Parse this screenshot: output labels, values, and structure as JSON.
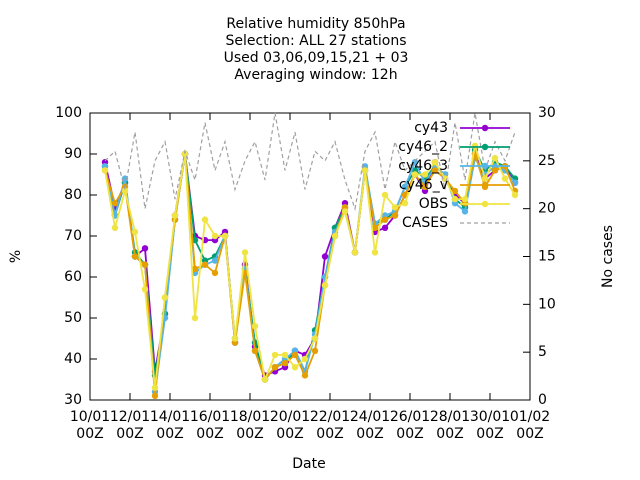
{
  "chart_data": {
    "type": "line",
    "title": "Relative humidity 850hPa\nSelection: ALL      27 stations\nUsed  03,06,09,15,21  + 03\nAveraging window: 12h",
    "xlabel": "Date",
    "ylabel": "%",
    "y2label": "No cases",
    "x": [
      0.75,
      1.25,
      1.75,
      2.25,
      2.75,
      3.25,
      3.75,
      4.25,
      4.75,
      5.25,
      5.75,
      6.25,
      6.75,
      7.25,
      7.75,
      8.25,
      8.75,
      9.25,
      9.75,
      10.25,
      10.75,
      11.25,
      11.75,
      12.25,
      12.75,
      13.25,
      13.75,
      14.25,
      14.75,
      15.25,
      15.75,
      16.25,
      16.75,
      17.25,
      17.75,
      18.25,
      18.75,
      19.25,
      19.75,
      20.25,
      20.75,
      21.25
    ],
    "xlim": [
      0,
      22
    ],
    "xticks": [
      {
        "value": 0,
        "label": "10/01\n00Z"
      },
      {
        "value": 2,
        "label": "12/01\n00Z"
      },
      {
        "value": 4,
        "label": "14/01\n00Z"
      },
      {
        "value": 6,
        "label": "16/01\n00Z"
      },
      {
        "value": 8,
        "label": "18/01\n00Z"
      },
      {
        "value": 10,
        "label": "20/01\n00Z"
      },
      {
        "value": 12,
        "label": "22/01\n00Z"
      },
      {
        "value": 14,
        "label": "24/01\n00Z"
      },
      {
        "value": 16,
        "label": "26/01\n00Z"
      },
      {
        "value": 18,
        "label": "28/01\n00Z"
      },
      {
        "value": 20,
        "label": "30/01\n00Z"
      },
      {
        "value": 22,
        "label": "01/02\n00Z"
      }
    ],
    "ylim": [
      30,
      100
    ],
    "yticks": [
      30,
      40,
      50,
      60,
      70,
      80,
      90,
      100
    ],
    "y2lim": [
      0,
      30
    ],
    "y2ticks": [
      0,
      5,
      10,
      15,
      20,
      25,
      30
    ],
    "legend": "top-right",
    "series": [
      {
        "name": "cy43",
        "color": "#9400d3",
        "values": [
          88,
          77,
          83,
          65,
          67,
          37,
          51,
          75,
          90,
          70,
          69,
          69,
          71,
          44,
          63,
          43,
          36,
          37,
          38,
          42,
          41,
          45,
          65,
          72,
          78,
          66,
          86,
          71,
          72,
          75,
          80,
          85,
          81,
          88,
          84,
          80,
          78,
          90,
          84,
          86,
          87,
          83
        ]
      },
      {
        "name": "cy46_2",
        "color": "#009e73",
        "values": [
          87,
          75,
          83,
          66,
          63,
          36,
          51,
          74,
          90,
          69,
          64,
          65,
          70,
          45,
          62,
          44,
          35,
          38,
          39,
          42,
          37,
          47,
          60,
          72,
          77,
          66,
          86,
          73,
          74,
          76,
          82,
          86,
          84,
          87,
          85,
          79,
          77,
          91,
          86,
          88,
          87,
          84
        ]
      },
      {
        "name": "cy46_3",
        "color": "#56b4e9",
        "values": [
          87,
          75,
          84,
          65,
          63,
          32,
          50,
          74,
          90,
          61,
          63,
          64,
          70,
          44,
          62,
          42,
          35,
          38,
          40,
          42,
          37,
          46,
          60,
          71,
          76,
          66,
          87,
          73,
          75,
          76,
          82,
          88,
          83,
          87,
          85,
          78,
          76,
          89,
          85,
          87,
          86,
          83
        ]
      },
      {
        "name": "cy46_v",
        "color": "#e69f00",
        "values": [
          86,
          78,
          82,
          65,
          63,
          31,
          55,
          74,
          90,
          62,
          63,
          61,
          70,
          44,
          61,
          42,
          35,
          38,
          39,
          41,
          36,
          42,
          58,
          70,
          77,
          66,
          86,
          72,
          74,
          75,
          80,
          85,
          82,
          86,
          84,
          81,
          78,
          90,
          82,
          86,
          87,
          81
        ]
      },
      {
        "name": "OBS",
        "color": "#f0e442",
        "values": [
          86,
          72,
          81,
          71,
          57,
          33,
          55,
          75,
          90,
          50,
          74,
          70,
          70,
          45,
          66,
          48,
          35,
          41,
          41,
          38,
          40,
          45,
          58,
          70,
          76,
          66,
          86,
          66,
          80,
          77,
          78,
          85,
          85,
          88,
          84,
          79,
          79,
          92,
          84,
          89,
          84,
          80
        ]
      },
      {
        "name": "CASES",
        "color": "#a0a0a0",
        "axis": "y2",
        "dashed": true,
        "markers": false,
        "values": [
          25,
          26,
          22,
          28,
          20,
          25,
          27,
          21,
          26,
          23,
          29,
          24,
          27,
          22,
          25,
          27,
          23,
          30,
          24,
          28,
          22,
          26,
          25,
          27,
          23,
          20,
          26,
          28,
          22,
          27,
          24,
          25,
          26,
          27,
          22,
          29,
          23,
          30,
          24,
          27,
          25,
          28
        ]
      }
    ]
  }
}
